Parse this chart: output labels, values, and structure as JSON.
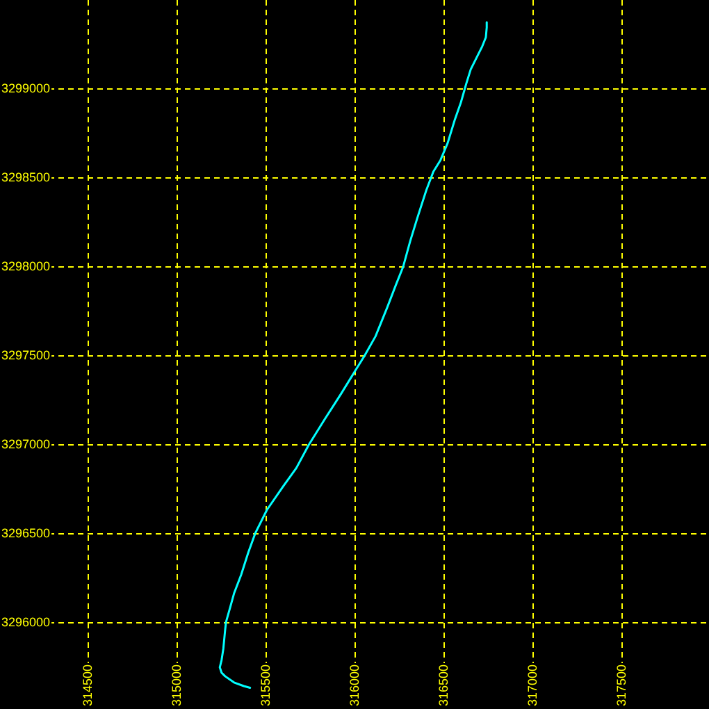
{
  "chart_data": {
    "type": "line",
    "x": [
      315410,
      315375,
      315320,
      315270,
      315250,
      315240,
      315250,
      315260,
      315270,
      315275,
      315295,
      315320,
      315360,
      315400,
      315440,
      315505,
      315595,
      315670,
      315740,
      315830,
      315920,
      316000,
      316050,
      316115,
      316180,
      316230,
      316270,
      316310,
      316350,
      316400,
      316440,
      316480,
      316520,
      316560,
      316595,
      316625,
      316650,
      316690,
      316715,
      316735,
      316740,
      316740
    ],
    "values": [
      3295635,
      3295645,
      3295665,
      3295700,
      3295720,
      3295750,
      3295790,
      3295855,
      3295960,
      3296005,
      3296075,
      3296165,
      3296270,
      3296395,
      3296505,
      3296635,
      3296765,
      3296870,
      3297000,
      3297145,
      3297285,
      3297415,
      3297495,
      3297610,
      3297770,
      3297900,
      3298000,
      3298145,
      3298275,
      3298430,
      3298535,
      3298600,
      3298695,
      3298825,
      3298925,
      3299030,
      3299110,
      3299190,
      3299240,
      3299290,
      3299345,
      3299375
    ],
    "color": "#00ffff",
    "xlim": [
      314005,
      317989
    ],
    "ylim": [
      3295516,
      3299500
    ],
    "xticks": [
      314500,
      315000,
      315500,
      316000,
      316500,
      317000,
      317500
    ],
    "yticks": [
      3296000,
      3296500,
      3297000,
      3297500,
      3298000,
      3298500,
      3299000
    ],
    "grid": true
  }
}
